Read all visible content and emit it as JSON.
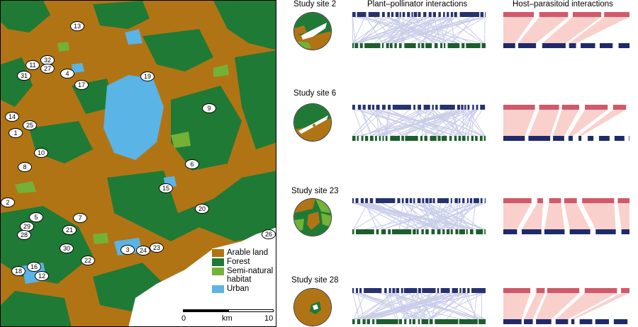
{
  "legend": {
    "items": [
      {
        "label": "Arable land",
        "color": "#b17415"
      },
      {
        "label": "Forest",
        "color": "#1f7a35"
      },
      {
        "label": "Semi-natural habitat",
        "color": "#73b236"
      },
      {
        "label": "Urban",
        "color": "#5ab4e5"
      }
    ]
  },
  "scalebar": {
    "start": "0",
    "unit": "km",
    "end": "10"
  },
  "headers": {
    "pollinator": "Plant–pollinator interactions",
    "parasitoid": "Host–parasitoid interactions"
  },
  "sites": [
    {
      "label": "Study site 2"
    },
    {
      "label": "Study site 6"
    },
    {
      "label": "Study site 23"
    },
    {
      "label": "Study site 28"
    }
  ],
  "markers": [
    "13",
    "32",
    "11",
    "27",
    "4",
    "31",
    "19",
    "17",
    "9",
    "14",
    "25",
    "1",
    "10",
    "8",
    "6",
    "15",
    "2",
    "20",
    "5",
    "7",
    "29",
    "21",
    "28",
    "30",
    "3",
    "24",
    "23",
    "22",
    "16",
    "18",
    "12",
    "26"
  ],
  "colors": {
    "arable": "#b17415",
    "forest": "#1f7a35",
    "seminatural": "#73b236",
    "urban": "#5ab4e5",
    "plant": "#1d5e2e",
    "pollinator": "#27336e",
    "pollinator_link": "#c9cde8",
    "host": "#1f2a6b",
    "parasitoid": "#d1596a",
    "parasitoid_link": "#f9d0cc"
  }
}
